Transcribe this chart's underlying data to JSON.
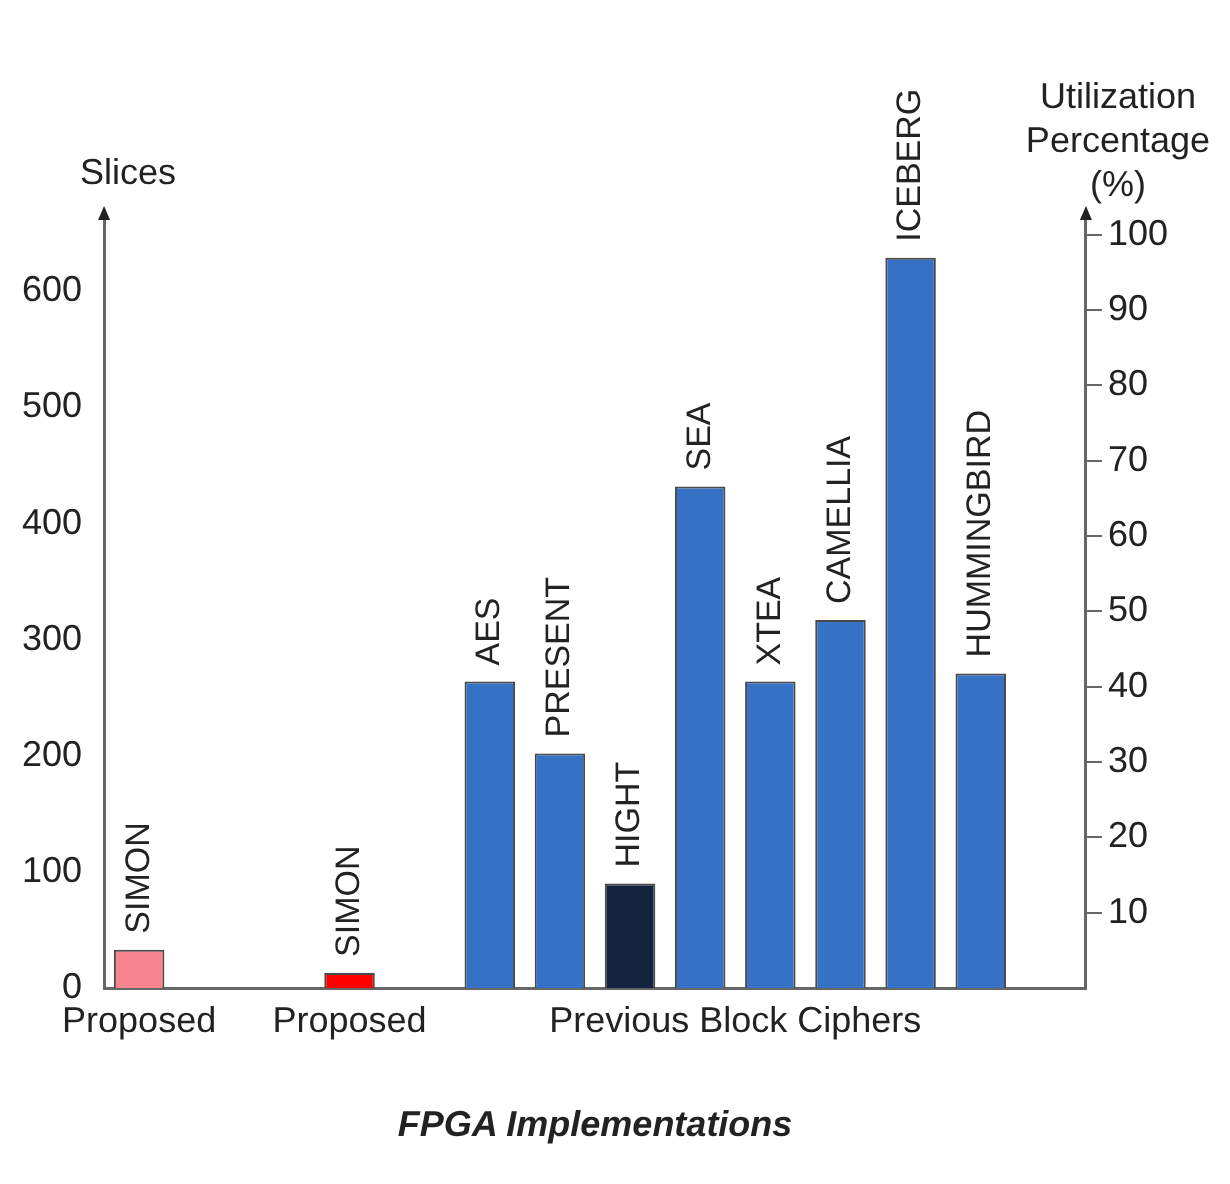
{
  "chart_data": {
    "type": "bar",
    "xlabel": "FPGA Implementations",
    "ylabel": "Slices",
    "y2label": "Utilization Percentage (%)",
    "categories": [
      "SIMON",
      null,
      null,
      "SIMON",
      null,
      "AES",
      "PRESENT",
      "HIGHT",
      "SEA",
      "XTEA",
      "CAMELLIA",
      "ICEBERG",
      "HUMMINGBIRD",
      null
    ],
    "values": [
      33,
      null,
      null,
      13,
      null,
      264,
      202,
      90,
      432,
      264,
      317,
      629,
      271,
      null
    ],
    "colors": [
      "#f7858f",
      null,
      null,
      "#ff0000",
      null,
      "#3572c6",
      "#3572c6",
      "#13233f",
      "#3572c6",
      "#3572c6",
      "#3572c6",
      "#3572c6",
      "#3572c6",
      null
    ],
    "ylim": [
      0,
      665
    ],
    "yticks": [
      0,
      100,
      200,
      300,
      400,
      500,
      600
    ],
    "y2lim": [
      0,
      102.5
    ],
    "y2ticks": [
      10,
      20,
      30,
      40,
      50,
      60,
      70,
      80,
      90,
      100
    ],
    "annotations": [
      "Proposed",
      "Proposed",
      "Previous Block Ciphers"
    ],
    "grid": false,
    "legend": false
  }
}
